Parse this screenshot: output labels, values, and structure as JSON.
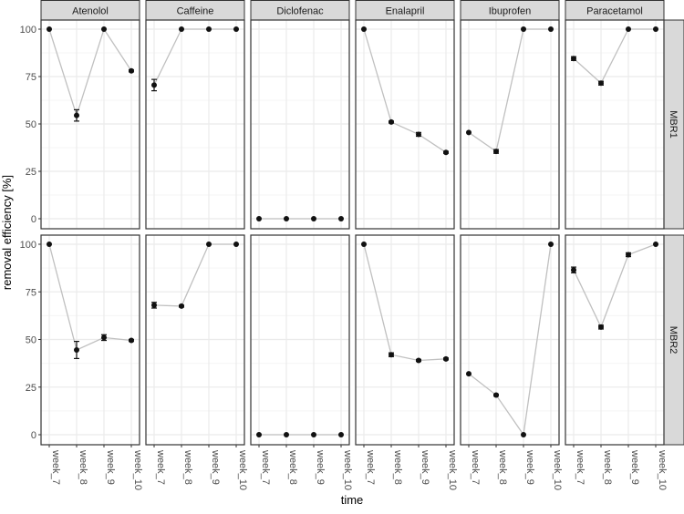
{
  "chart_data": {
    "type": "line",
    "title": "",
    "xlabel": "time",
    "ylabel": "removal efficiency [%]",
    "ylim": [
      0,
      100
    ],
    "yticks": [
      0,
      25,
      50,
      75,
      100
    ],
    "categories": [
      "week_7",
      "week_8",
      "week_9",
      "week_10"
    ],
    "facet_columns": [
      "Atenolol",
      "Caffeine",
      "Diclofenac",
      "Enalapril",
      "Ibuprofen",
      "Paracetamol"
    ],
    "facet_rows": [
      "MBR1",
      "MBR2"
    ],
    "grid": true,
    "error_bars": true,
    "panels": [
      {
        "row": "MBR1",
        "compound": "Atenolol",
        "values": [
          100,
          54.5,
          100,
          78
        ],
        "errors": [
          0,
          3,
          0,
          0.5
        ]
      },
      {
        "row": "MBR1",
        "compound": "Caffeine",
        "values": [
          70.5,
          100,
          100,
          100
        ],
        "errors": [
          3,
          0,
          0,
          0
        ]
      },
      {
        "row": "MBR1",
        "compound": "Diclofenac",
        "values": [
          0,
          0,
          0,
          0
        ],
        "errors": [
          0,
          0,
          0,
          0
        ]
      },
      {
        "row": "MBR1",
        "compound": "Enalapril",
        "values": [
          100,
          51,
          44.5,
          35
        ],
        "errors": [
          0,
          0.5,
          1,
          0.5
        ]
      },
      {
        "row": "MBR1",
        "compound": "Ibuprofen",
        "values": [
          45.5,
          35.5,
          100,
          100
        ],
        "errors": [
          0,
          1,
          0,
          0
        ]
      },
      {
        "row": "MBR1",
        "compound": "Paracetamol",
        "values": [
          84.5,
          71.5,
          100,
          100
        ],
        "errors": [
          1,
          1,
          0,
          0
        ]
      },
      {
        "row": "MBR2",
        "compound": "Atenolol",
        "values": [
          100,
          44.5,
          51,
          49.5
        ],
        "errors": [
          0,
          4.5,
          1.5,
          0.5
        ]
      },
      {
        "row": "MBR2",
        "compound": "Caffeine",
        "values": [
          68,
          67.5,
          100,
          100
        ],
        "errors": [
          1.5,
          0.5,
          0,
          0
        ]
      },
      {
        "row": "MBR2",
        "compound": "Diclofenac",
        "values": [
          0,
          0,
          0,
          0
        ],
        "errors": [
          0,
          0,
          0,
          0
        ]
      },
      {
        "row": "MBR2",
        "compound": "Enalapril",
        "values": [
          100,
          42,
          39,
          39.8
        ],
        "errors": [
          0,
          1,
          0.5,
          0.5
        ]
      },
      {
        "row": "MBR2",
        "compound": "Ibuprofen",
        "values": [
          32,
          20.8,
          0,
          100
        ],
        "errors": [
          0,
          0.5,
          0,
          0
        ]
      },
      {
        "row": "MBR2",
        "compound": "Paracetamol",
        "values": [
          86.5,
          56.5,
          94.5,
          100
        ],
        "errors": [
          1.5,
          1,
          1,
          0
        ]
      }
    ]
  },
  "colors": {
    "strip_fill": "#d9d9d9",
    "panel_border": "#333333",
    "grid_major": "#ebebeb",
    "grid_minor": "#f5f5f5",
    "line": "#c0c0c0",
    "point": "#111111",
    "tick_text": "#4d4d4d"
  }
}
